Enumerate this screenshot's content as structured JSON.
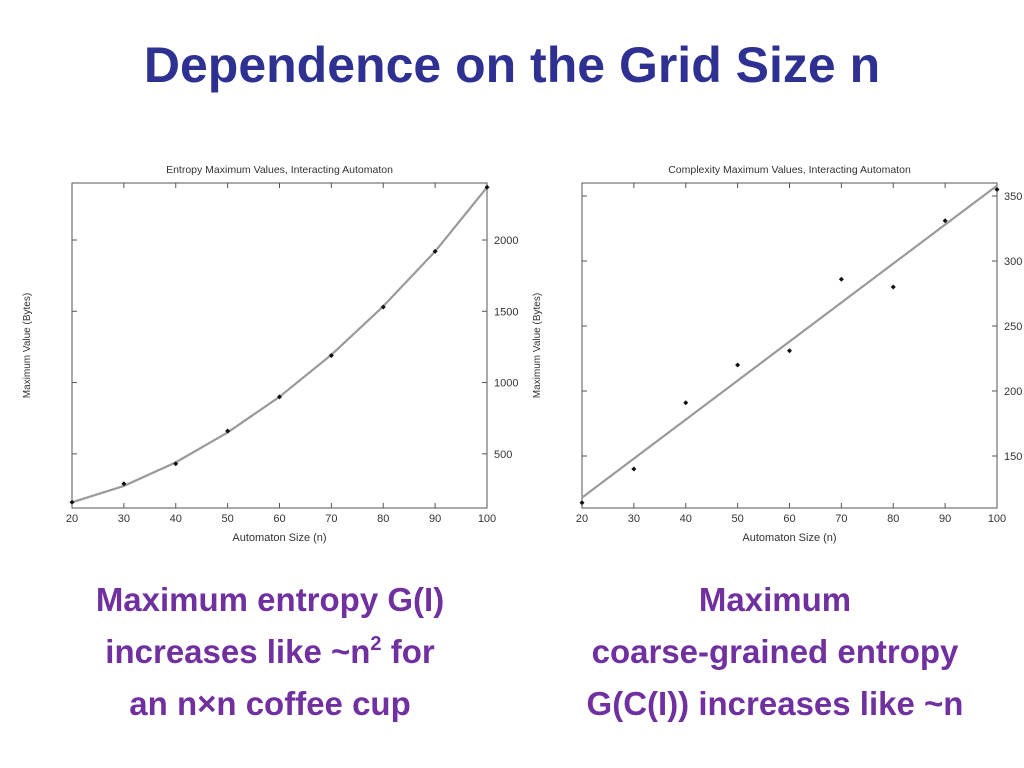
{
  "slide": {
    "title": "Dependence on the Grid Size n",
    "caption_left": {
      "line1": "Maximum entropy G(I)",
      "line2_pre": "increases like ~n",
      "line2_sup": "2",
      "line2_post": " for",
      "line3": "an n×n coffee cup"
    },
    "caption_right": {
      "line1": "Maximum",
      "line2": "coarse-grained entropy",
      "line3": "G(C(I)) increases like ~n"
    }
  },
  "chart_data": [
    {
      "type": "scatter",
      "title": "Entropy Maximum Values, Interacting Automaton",
      "xlabel": "Automaton Size (n)",
      "ylabel": "Maximum Value (Bytes)",
      "xlim": [
        20,
        100
      ],
      "ylim": [
        120,
        2400
      ],
      "xticks": [
        20,
        30,
        40,
        50,
        60,
        70,
        80,
        90,
        100
      ],
      "yticks": [
        500,
        1000,
        1500,
        2000
      ],
      "grid": false,
      "series": [
        {
          "x": [
            20,
            30,
            40,
            50,
            60,
            70,
            80,
            90,
            100
          ],
          "y": [
            160,
            290,
            430,
            660,
            900,
            1190,
            1530,
            1920,
            2370
          ]
        }
      ],
      "fit": {
        "kind": "quadratic",
        "x": [
          20,
          30,
          40,
          50,
          60,
          70,
          80,
          90,
          100
        ],
        "y": [
          160,
          275,
          440,
          650,
          900,
          1195,
          1535,
          1920,
          2370
        ]
      }
    },
    {
      "type": "scatter",
      "title": "Complexity Maximum Values, Interacting Automaton",
      "xlabel": "Automaton Size (n)",
      "ylabel": "Maximum Value (Bytes)",
      "xlim": [
        20,
        100
      ],
      "ylim": [
        110,
        360
      ],
      "xticks": [
        20,
        30,
        40,
        50,
        60,
        70,
        80,
        90,
        100
      ],
      "yticks": [
        150,
        200,
        250,
        300,
        350
      ],
      "grid": false,
      "series": [
        {
          "x": [
            20,
            30,
            40,
            50,
            60,
            70,
            80,
            90,
            100
          ],
          "y": [
            114,
            140,
            191,
            220,
            231,
            286,
            280,
            331,
            355
          ]
        }
      ],
      "fit": {
        "kind": "linear",
        "x": [
          20,
          100
        ],
        "y": [
          118,
          358
        ]
      }
    }
  ]
}
